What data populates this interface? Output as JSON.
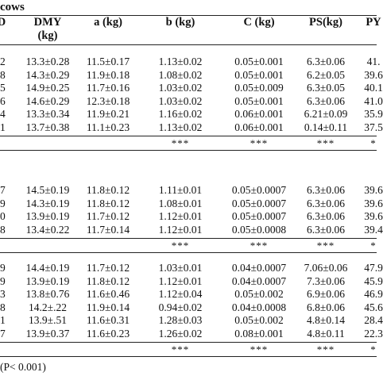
{
  "caption": "cows",
  "headers": {
    "col0": "D",
    "dmy": "DMY",
    "dmy_unit": "(kg)",
    "a": "a (kg)",
    "b": "b (kg)",
    "c": "C (kg)",
    "ps": "PS(kg)",
    "py": "PY"
  },
  "groups": [
    {
      "rows": [
        {
          "left": "2",
          "dmy": "13.3±0.28",
          "a": "11.5±0.17",
          "b": "1.13±0.02",
          "c": "0.05±0.001",
          "ps": "6.3±0.06",
          "py": "41."
        },
        {
          "left": "8",
          "dmy": "14.3±0.29",
          "a": "11.9±0.18",
          "b": "1.08±0.02",
          "c": "0.05±0.001",
          "ps": "6.2±0.05",
          "py": "39.6"
        },
        {
          "left": "5",
          "dmy": "14.9±0.25",
          "a": "11.7±0.16",
          "b": "1.03±0.02",
          "c": "0.05±0.009",
          "ps": "6.3±0.05",
          "py": "40.1"
        },
        {
          "left": "6",
          "dmy": "14.6±0.29",
          "a": "12.3±0.18",
          "b": "1.03±0.02",
          "c": "0.05±0.001",
          "ps": "6.3±0.06",
          "py": "41.0"
        },
        {
          "left": "4",
          "dmy": "13.3±0.34",
          "a": "11.9±0.21",
          "b": "1.16±0.02",
          "c": "0.06±0.001",
          "ps": "6.21±0.09",
          "py": "35.9"
        },
        {
          "left": "1",
          "dmy": "13.7±0.38",
          "a": "11.1±0.23",
          "b": "1.13±0.02",
          "c": "0.06±0.001",
          "ps": "0.14±0.11",
          "py": "37.5"
        }
      ],
      "sig": {
        "b": "***",
        "c": "***",
        "ps": "***",
        "py": "*"
      }
    },
    {
      "rows": [
        {
          "left": "7",
          "dmy": "14.5±0.19",
          "a": "11.8±0.12",
          "b": "1.11±0.01",
          "c": "0.05±0.0007",
          "ps": "6.3±0.06",
          "py": "39.6"
        },
        {
          "left": "9",
          "dmy": "14.3±0.19",
          "a": "11.8±0.12",
          "b": "1.08±0.01",
          "c": "0.05±0.0007",
          "ps": "6.3±0.06",
          "py": "39.6"
        },
        {
          "left": "0",
          "dmy": "13.9±0.19",
          "a": "11.7±0.12",
          "b": "1.12±0.01",
          "c": "0.05±0.0007",
          "ps": "6.3±0.06",
          "py": "39.6"
        },
        {
          "left": "8",
          "dmy": "13.4±0.22",
          "a": "11.7±0.14",
          "b": "1.12±0.01",
          "c": "0.05±0.0008",
          "ps": "6.3±0.06",
          "py": "39.4"
        }
      ],
      "sig": {
        "b": "***",
        "c": "***",
        "ps": "***",
        "py": "*"
      }
    },
    {
      "rows": [
        {
          "left": "9",
          "dmy": "14.4±0.19",
          "a": "11.7±0.12",
          "b": "1.03±0.01",
          "c": "0.04±0.0007",
          "ps": "7.06±0.06",
          "py": "47.9"
        },
        {
          "left": "9",
          "dmy": "13.9±0.19",
          "a": "11.8±0.12",
          "b": "1.12±0.01",
          "c": "0.04±0.0007",
          "ps": "7.3±0.06",
          "py": "45.9"
        },
        {
          "left": "3",
          "dmy": "13.8±0.76",
          "a": "11.6±0.46",
          "b": "1.12±0.04",
          "c": "0.05±0.002",
          "ps": "6.9±0.06",
          "py": "46.9"
        },
        {
          "left": "8",
          "dmy": "14.2±.22",
          "a": "11.9±0.14",
          "b": "0.94±0.02",
          "c": "0.04±0.0008",
          "ps": "6.8±0.06",
          "py": "45.6"
        },
        {
          "left": "1",
          "dmy": "13.9±.51",
          "a": "11.6±0.31",
          "b": "1.28±0.03",
          "c": "0.05±0.002",
          "ps": "4.8±0.14",
          "py": "28.4"
        },
        {
          "left": "7",
          "dmy": "13.9±0.37",
          "a": "11.6±0.23",
          "b": "1.26±0.02",
          "c": "0.08±0.001",
          "ps": "4.8±0.11",
          "py": "22.3"
        }
      ],
      "sig": {
        "b": "***",
        "c": "***",
        "ps": "***",
        "py": "*"
      }
    }
  ],
  "footnote": "(P< 0.001)"
}
